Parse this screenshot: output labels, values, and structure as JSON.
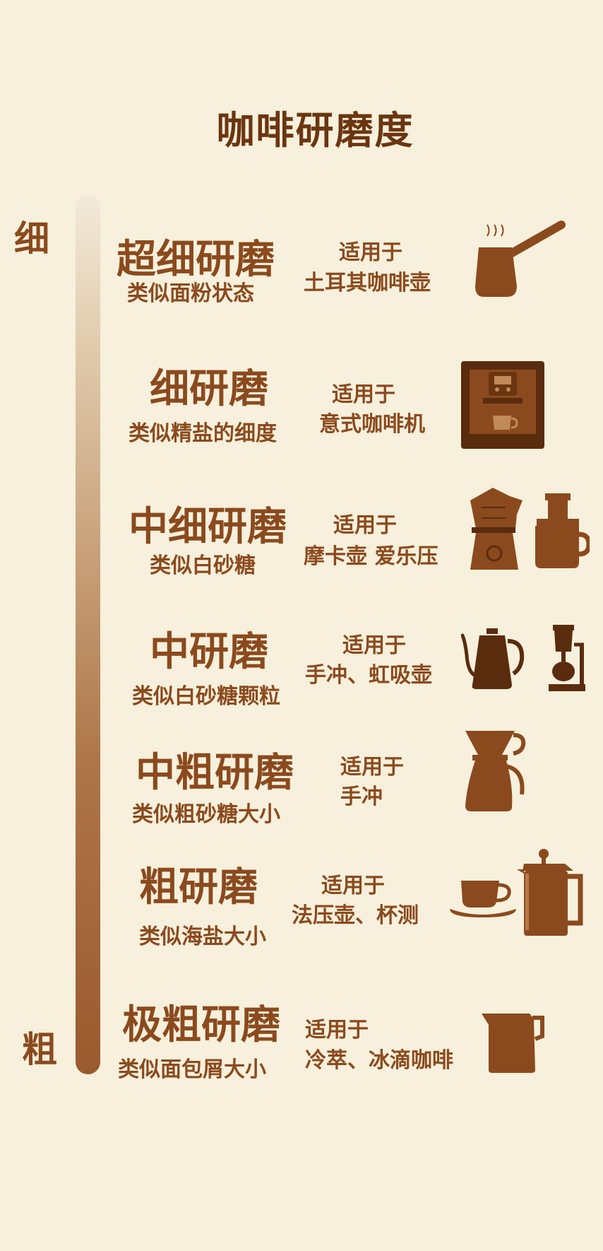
{
  "title": "咖啡研磨度",
  "scale": {
    "fine_label": "细",
    "coarse_label": "粗"
  },
  "colors": {
    "background": "#f6f0dc",
    "text": "#8b4a1e",
    "title": "#6b3510",
    "icon": "#8b4a1e",
    "icon_dark": "#5a2c0e"
  },
  "grinds": [
    {
      "name": "超细研磨",
      "desc": "类似面粉状态",
      "for_label": "适用于",
      "for_value": "土耳其咖啡壶",
      "icons": [
        "turkish-coffee-pot-icon"
      ]
    },
    {
      "name": "细研磨",
      "desc": "类似精盐的细度",
      "for_label": "适用于",
      "for_value": "意式咖啡机",
      "icons": [
        "espresso-machine-icon"
      ]
    },
    {
      "name": "中细研磨",
      "desc": "类似白砂糖",
      "for_label": "适用于",
      "for_value": "摩卡壶 爱乐压",
      "icons": [
        "moka-pot-icon",
        "aeropress-icon"
      ]
    },
    {
      "name": "中研磨",
      "desc": "类似白砂糖颗粒",
      "for_label": "适用于",
      "for_value": "手冲、虹吸壶",
      "icons": [
        "gooseneck-kettle-icon",
        "siphon-icon"
      ]
    },
    {
      "name": "中粗研磨",
      "desc": "类似粗砂糖大小",
      "for_label": "适用于",
      "for_value": "手冲",
      "icons": [
        "pour-over-dripper-icon"
      ]
    },
    {
      "name": "粗研磨",
      "desc": "类似海盐大小",
      "for_label": "适用于",
      "for_value": "法压壶、杯测",
      "icons": [
        "cup-saucer-icon",
        "french-press-icon"
      ]
    },
    {
      "name": "极粗研磨",
      "desc": "类似面包屑大小",
      "for_label": "适用于",
      "for_value": "冷萃、冰滴咖啡",
      "icons": [
        "pitcher-icon"
      ]
    }
  ]
}
